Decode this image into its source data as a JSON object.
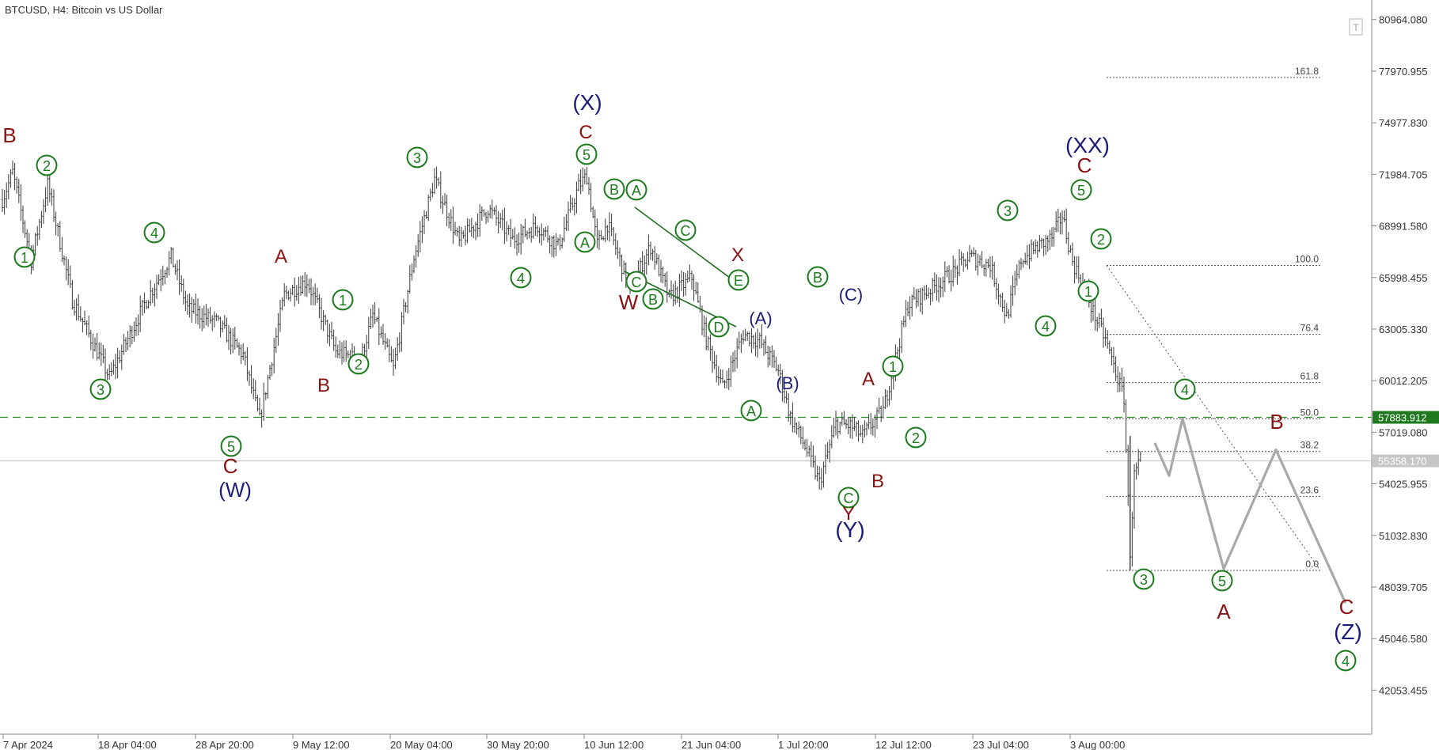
{
  "header": {
    "title": "BTCUSD, H4:  Bitcoin vs US Dollar"
  },
  "colors": {
    "candle": "#3a3a3a",
    "green_label": "#1b7a1b",
    "red_label": "#8b1212",
    "navy_label": "#1c1c78",
    "forecast": "#a9a9a9",
    "dashed_level": "#2d8f2d",
    "current_price_line": "#c8c8c8",
    "fib": "#555555",
    "axis": "#888888"
  },
  "icons": {
    "corner": "t-icon"
  },
  "chart_data": {
    "type": "candlestick",
    "symbol": "BTCUSD",
    "timeframe": "H4",
    "title": "BTCUSD, H4:  Bitcoin vs US Dollar",
    "ylim": [
      39500,
      82100
    ],
    "grid": false,
    "y_ticks": [
      "80964.080",
      "77970.955",
      "74977.830",
      "71984.705",
      "68991.580",
      "65998.455",
      "63005.330",
      "60012.205",
      "57019.080",
      "54025.955",
      "51032.830",
      "48039.705",
      "45046.580",
      "42053.455"
    ],
    "x_ticks": [
      "7 Apr 2024",
      "18 Apr 04:00",
      "28 Apr 20:00",
      "9 May 12:00",
      "20 May 04:00",
      "30 May 20:00",
      "10 Jun 12:00",
      "21 Jun 04:00",
      "1 Jul 20:00",
      "12 Jul 12:00",
      "23 Jul 04:00",
      "3 Aug 00:00"
    ],
    "price_anchors": [
      {
        "bar": 0,
        "price": 70500
      },
      {
        "bar": 5,
        "price": 72100
      },
      {
        "bar": 14,
        "price": 67000
      },
      {
        "bar": 22,
        "price": 71400
      },
      {
        "bar": 34,
        "price": 64700
      },
      {
        "bar": 52,
        "price": 60200
      },
      {
        "bar": 70,
        "price": 64700
      },
      {
        "bar": 82,
        "price": 67200
      },
      {
        "bar": 90,
        "price": 64200
      },
      {
        "bar": 104,
        "price": 63400
      },
      {
        "bar": 117,
        "price": 61500
      },
      {
        "bar": 125,
        "price": 57700
      },
      {
        "bar": 137,
        "price": 65000
      },
      {
        "bar": 148,
        "price": 65800
      },
      {
        "bar": 162,
        "price": 61700
      },
      {
        "bar": 174,
        "price": 61200
      },
      {
        "bar": 180,
        "price": 63800
      },
      {
        "bar": 190,
        "price": 60700
      },
      {
        "bar": 200,
        "price": 67200
      },
      {
        "bar": 210,
        "price": 71700
      },
      {
        "bar": 222,
        "price": 68000
      },
      {
        "bar": 236,
        "price": 70000
      },
      {
        "bar": 248,
        "price": 68200
      },
      {
        "bar": 260,
        "price": 69000
      },
      {
        "bar": 270,
        "price": 67800
      },
      {
        "bar": 280,
        "price": 71300
      },
      {
        "bar": 284,
        "price": 71900
      },
      {
        "bar": 289,
        "price": 67900
      },
      {
        "bar": 294,
        "price": 69100
      },
      {
        "bar": 305,
        "price": 65300
      },
      {
        "bar": 315,
        "price": 67800
      },
      {
        "bar": 324,
        "price": 64800
      },
      {
        "bar": 335,
        "price": 66000
      },
      {
        "bar": 342,
        "price": 62400
      },
      {
        "bar": 350,
        "price": 59600
      },
      {
        "bar": 360,
        "price": 62700
      },
      {
        "bar": 368,
        "price": 62300
      },
      {
        "bar": 377,
        "price": 60600
      },
      {
        "bar": 383,
        "price": 57900
      },
      {
        "bar": 390,
        "price": 56200
      },
      {
        "bar": 397,
        "price": 54100
      },
      {
        "bar": 405,
        "price": 57500
      },
      {
        "bar": 412,
        "price": 57400
      },
      {
        "bar": 418,
        "price": 56800
      },
      {
        "bar": 428,
        "price": 58300
      },
      {
        "bar": 440,
        "price": 64400
      },
      {
        "bar": 452,
        "price": 65400
      },
      {
        "bar": 462,
        "price": 66300
      },
      {
        "bar": 470,
        "price": 67200
      },
      {
        "bar": 480,
        "price": 66700
      },
      {
        "bar": 488,
        "price": 63700
      },
      {
        "bar": 495,
        "price": 67000
      },
      {
        "bar": 502,
        "price": 67700
      },
      {
        "bar": 510,
        "price": 68300
      },
      {
        "bar": 515,
        "price": 69600
      },
      {
        "bar": 520,
        "price": 66900
      },
      {
        "bar": 525,
        "price": 65600
      },
      {
        "bar": 530,
        "price": 64000
      },
      {
        "bar": 536,
        "price": 62400
      },
      {
        "bar": 541,
        "price": 60500
      },
      {
        "bar": 545,
        "price": 59000
      },
      {
        "bar": 548,
        "price": 50100
      },
      {
        "bar": 550,
        "price": 54500
      },
      {
        "bar": 553,
        "price": 55400
      }
    ],
    "fibonacci": {
      "high": 66700,
      "low": 49000,
      "levels": [
        {
          "label": "161.8",
          "value": 77600
        },
        {
          "label": "100.0",
          "value": 66700
        },
        {
          "label": "76.4",
          "value": 62700
        },
        {
          "label": "61.8",
          "value": 59900
        },
        {
          "label": "50.0",
          "value": 57800
        },
        {
          "label": "38.2",
          "value": 55900
        },
        {
          "label": "23.6",
          "value": 53300
        },
        {
          "label": "0.0",
          "value": 49000
        }
      ]
    },
    "levels": [
      {
        "name": "dashed-support",
        "price": 57883.912,
        "label": "57883.912"
      },
      {
        "name": "current-price",
        "price": 55358.17,
        "label": "55358.170"
      }
    ],
    "forecast_path": [
      {
        "date": "5 Aug 2024",
        "price": 56400
      },
      {
        "date": "6 Aug 2024",
        "price": 54500
      },
      {
        "date": "7 Aug 2024",
        "price": 57800
      },
      {
        "date": "9 Aug 2024",
        "price": 49100
      },
      {
        "date": "12 Aug 2024",
        "price": 56000
      },
      {
        "date": "14 Aug 2024",
        "price": 47100
      }
    ],
    "annotations": [
      {
        "text": "B",
        "style": "red"
      },
      {
        "text": "2",
        "style": "green-circle"
      },
      {
        "text": "1",
        "style": "green-circle"
      },
      {
        "text": "3",
        "style": "green-circle"
      },
      {
        "text": "4",
        "style": "green-circle"
      },
      {
        "text": "5",
        "style": "green-circle"
      },
      {
        "text": "C",
        "style": "red"
      },
      {
        "text": "(W)",
        "style": "navy"
      },
      {
        "text": "A",
        "style": "red"
      },
      {
        "text": "B",
        "style": "red"
      },
      {
        "text": "1",
        "style": "green-circle"
      },
      {
        "text": "2",
        "style": "green-circle"
      },
      {
        "text": "3",
        "style": "green-circle"
      },
      {
        "text": "4",
        "style": "green-circle"
      },
      {
        "text": "5",
        "style": "green-circle"
      },
      {
        "text": "C",
        "style": "red"
      },
      {
        "text": "(X)",
        "style": "navy"
      },
      {
        "text": "A",
        "style": "green-circle"
      },
      {
        "text": "B",
        "style": "green-circle"
      },
      {
        "text": "A",
        "style": "green-circle"
      },
      {
        "text": "C",
        "style": "green-circle"
      },
      {
        "text": "W",
        "style": "red"
      },
      {
        "text": "B",
        "style": "green-circle"
      },
      {
        "text": "C",
        "style": "green-circle"
      },
      {
        "text": "X",
        "style": "red"
      },
      {
        "text": "E",
        "style": "green-circle"
      },
      {
        "text": "D",
        "style": "green-circle"
      },
      {
        "text": "(A)",
        "style": "navy"
      },
      {
        "text": "A",
        "style": "green-circle"
      },
      {
        "text": "(B)",
        "style": "navy"
      },
      {
        "text": "B",
        "style": "green-circle"
      },
      {
        "text": "(C)",
        "style": "navy"
      },
      {
        "text": "C",
        "style": "green-circle"
      },
      {
        "text": "Y",
        "style": "red"
      },
      {
        "text": "(Y)",
        "style": "navy"
      },
      {
        "text": "A",
        "style": "red"
      },
      {
        "text": "1",
        "style": "green-circle"
      },
      {
        "text": "B",
        "style": "red"
      },
      {
        "text": "2",
        "style": "green-circle"
      },
      {
        "text": "3",
        "style": "green-circle"
      },
      {
        "text": "4",
        "style": "green-circle"
      },
      {
        "text": "5",
        "style": "green-circle"
      },
      {
        "text": "C",
        "style": "red"
      },
      {
        "text": "(XX)",
        "style": "navy"
      },
      {
        "text": "2",
        "style": "green-circle"
      },
      {
        "text": "1",
        "style": "green-circle"
      },
      {
        "text": "3",
        "style": "green-circle"
      },
      {
        "text": "4",
        "style": "green-circle"
      },
      {
        "text": "5",
        "style": "green-circle"
      },
      {
        "text": "A",
        "style": "red"
      },
      {
        "text": "B",
        "style": "red"
      },
      {
        "text": "C",
        "style": "red"
      },
      {
        "text": "(Z)",
        "style": "navy"
      },
      {
        "text": "4",
        "style": "green-circle"
      }
    ]
  }
}
